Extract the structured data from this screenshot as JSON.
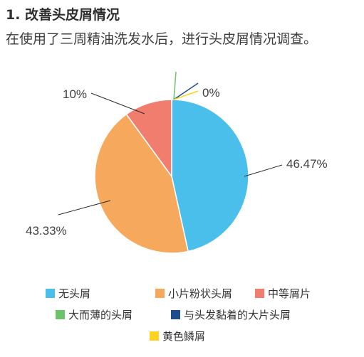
{
  "heading": {
    "title": "1. 改善头皮屑情况",
    "subtitle": "在使用了三周精油洗发水后，进行头皮屑情况调查。"
  },
  "chart_data": {
    "type": "pie",
    "slices": [
      {
        "name": "无头屑",
        "value": 46.47,
        "label": "46.47%",
        "color": "#4bbfec"
      },
      {
        "name": "小片粉状头屑",
        "value": 43.33,
        "label": "43.33%",
        "color": "#f6a95c"
      },
      {
        "name": "中等屑片",
        "value": 10.0,
        "label": "10%",
        "color": "#f17d6f"
      },
      {
        "name": "大而薄的头屑",
        "value": 0.0,
        "label": "",
        "color": "#6cc46a"
      },
      {
        "name": "与头发黏着的大片头屑",
        "value": 0.0,
        "label": "",
        "color": "#1f4e8c"
      },
      {
        "name": "黄色鳞屑",
        "value": 0.0,
        "label": "0%",
        "color": "#ffd21f"
      }
    ],
    "legend_position": "bottom"
  }
}
